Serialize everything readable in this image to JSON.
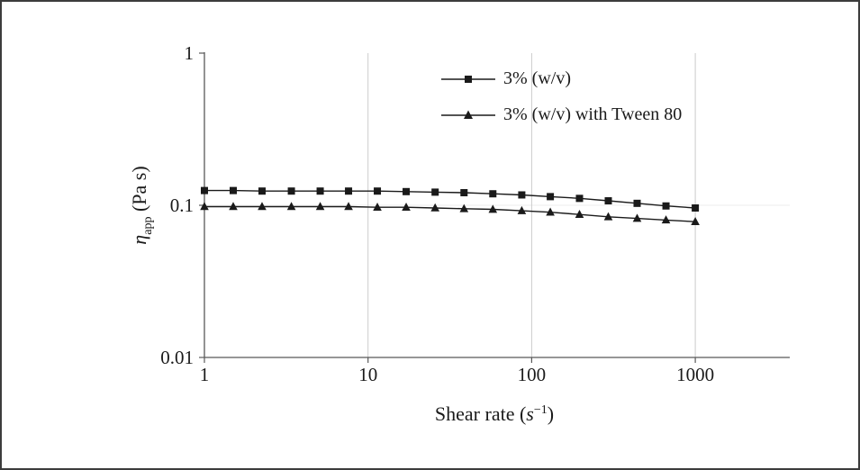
{
  "figure": {
    "background": "#ffffff",
    "border_color": "#3c3c3c"
  },
  "chart_data": {
    "type": "line",
    "x_scale": "log",
    "y_scale": "log",
    "title": "",
    "xlim": [
      1,
      1000
    ],
    "ylim": [
      0.01,
      1
    ],
    "x_ticks": [
      1,
      10,
      100,
      1000
    ],
    "x_tick_labels": [
      "1",
      "10",
      "100",
      "1000"
    ],
    "y_ticks": [
      1,
      0.1,
      0.01
    ],
    "y_tick_labels": [
      "1",
      "0.1",
      "0.01"
    ],
    "xlabel": {
      "prefix": "Shear rate (",
      "variable": "s",
      "exponent": "−1",
      "suffix": ")"
    },
    "ylabel": {
      "variable": "η",
      "subscript": "app",
      "rest": " (Pa s)"
    },
    "grid": {
      "vertical_at": [
        10,
        100,
        1000
      ],
      "horizontal_at": [
        0.1
      ],
      "v_color": "#cccccc",
      "h_color": "#ececec"
    },
    "axis_color": "#595959",
    "text_color": "#1a1a1a",
    "x": [
      1,
      1.5,
      2.25,
      3.4,
      5.1,
      7.6,
      11.4,
      17.1,
      25.7,
      38.6,
      57.9,
      87,
      130,
      196,
      294,
      441,
      662,
      1000
    ],
    "series": [
      {
        "name": "3% (w/v)",
        "marker": "square",
        "color": "#1a1a1a",
        "values": [
          0.125,
          0.125,
          0.124,
          0.124,
          0.124,
          0.124,
          0.124,
          0.123,
          0.122,
          0.121,
          0.119,
          0.117,
          0.114,
          0.111,
          0.107,
          0.103,
          0.099,
          0.096
        ]
      },
      {
        "name": "3% (w/v) with Tween 80",
        "marker": "triangle",
        "color": "#1a1a1a",
        "values": [
          0.098,
          0.098,
          0.098,
          0.098,
          0.098,
          0.098,
          0.097,
          0.097,
          0.096,
          0.095,
          0.094,
          0.092,
          0.09,
          0.087,
          0.084,
          0.082,
          0.08,
          0.078
        ]
      }
    ],
    "legend": {
      "position": "top-center-inside"
    }
  }
}
